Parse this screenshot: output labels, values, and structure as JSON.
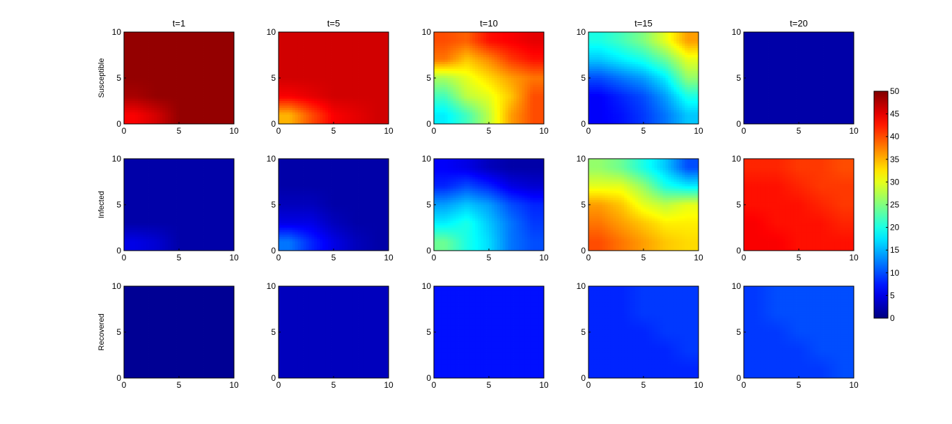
{
  "chart_data": {
    "type": "heatmap",
    "colormap": "jet",
    "grid": false,
    "column_titles": [
      "t=1",
      "t=5",
      "t=10",
      "t=15",
      "t=20"
    ],
    "row_labels": [
      "Susceptible",
      "Infected",
      "Recovered"
    ],
    "xlim": [
      0,
      10
    ],
    "ylim": [
      0,
      10
    ],
    "x_ticks": [
      "0",
      "5",
      "10"
    ],
    "y_ticks": [
      "0",
      "5",
      "10"
    ],
    "grid_coords": [
      0,
      2.5,
      5,
      7.5,
      10
    ],
    "colorbar": {
      "min": 0,
      "max": 50,
      "position": "right",
      "ticks": [
        "0",
        "5",
        "10",
        "15",
        "20",
        "25",
        "30",
        "35",
        "40",
        "45",
        "50"
      ]
    },
    "panels": [
      [
        {
          "values": [
            [
              49,
              49,
              49,
              49,
              49
            ],
            [
              49,
              49,
              49,
              49,
              49
            ],
            [
              49,
              49,
              49,
              49,
              49
            ],
            [
              48,
              49,
              49,
              49,
              49
            ],
            [
              44,
              46,
              49,
              49,
              49
            ]
          ]
        },
        {
          "values": [
            [
              46,
              46,
              46,
              46,
              46
            ],
            [
              46,
              46,
              46,
              46,
              46
            ],
            [
              46,
              46,
              46,
              46,
              46
            ],
            [
              44,
              45,
              46,
              46,
              46
            ],
            [
              35,
              40,
              44,
              45,
              46
            ]
          ]
        },
        {
          "values": [
            [
              40,
              39,
              43,
              44,
              45
            ],
            [
              38,
              34,
              37,
              41,
              43
            ],
            [
              27,
              30,
              33,
              36,
              38
            ],
            [
              22,
              28,
              30,
              34,
              40
            ],
            [
              18,
              22,
              28,
              36,
              40
            ]
          ]
        },
        {
          "values": [
            [
              20,
              22,
              25,
              30,
              36
            ],
            [
              16,
              18,
              20,
              24,
              30
            ],
            [
              10,
              12,
              14,
              18,
              26
            ],
            [
              6,
              8,
              10,
              14,
              20
            ],
            [
              6,
              7,
              9,
              12,
              16
            ]
          ]
        },
        {
          "values": [
            [
              2,
              2,
              2,
              2,
              2
            ],
            [
              2,
              2,
              2,
              2,
              2
            ],
            [
              2,
              2,
              2,
              2,
              2
            ],
            [
              2,
              2,
              2,
              2,
              2
            ],
            [
              2,
              2,
              2,
              2,
              2
            ]
          ]
        }
      ],
      [
        {
          "values": [
            [
              2,
              2,
              2,
              2,
              2
            ],
            [
              2,
              2,
              2,
              2,
              2
            ],
            [
              2,
              2,
              2,
              2,
              2
            ],
            [
              2,
              2,
              2,
              2,
              2
            ],
            [
              5,
              4,
              2,
              2,
              2
            ]
          ]
        },
        {
          "values": [
            [
              2,
              2,
              2,
              2,
              2
            ],
            [
              2,
              2,
              2,
              2,
              2
            ],
            [
              3,
              3,
              2,
              2,
              2
            ],
            [
              5,
              5,
              3,
              2,
              2
            ],
            [
              12,
              8,
              5,
              3,
              2
            ]
          ]
        },
        {
          "values": [
            [
              6,
              5,
              3,
              2,
              2
            ],
            [
              8,
              10,
              8,
              5,
              4
            ],
            [
              14,
              16,
              14,
              10,
              8
            ],
            [
              18,
              20,
              16,
              12,
              9
            ],
            [
              24,
              20,
              17,
              12,
              10
            ]
          ]
        },
        {
          "values": [
            [
              26,
              24,
              20,
              16,
              10
            ],
            [
              30,
              30,
              26,
              20,
              18
            ],
            [
              36,
              34,
              30,
              28,
              30
            ],
            [
              38,
              36,
              34,
              32,
              32
            ],
            [
              40,
              38,
              36,
              34,
              33
            ]
          ]
        },
        {
          "values": [
            [
              42,
              42,
              41,
              41,
              40
            ],
            [
              43,
              43,
              42,
              41,
              41
            ],
            [
              43,
              43,
              43,
              42,
              41
            ],
            [
              44,
              43,
              43,
              43,
              42
            ],
            [
              44,
              44,
              43,
              43,
              43
            ]
          ]
        }
      ],
      [
        {
          "values": [
            [
              1,
              1,
              1,
              1,
              1
            ],
            [
              1,
              1,
              1,
              1,
              1
            ],
            [
              1,
              1,
              1,
              1,
              1
            ],
            [
              1,
              1,
              1,
              1,
              1
            ],
            [
              1,
              1,
              1,
              1,
              1
            ]
          ]
        },
        {
          "values": [
            [
              3,
              3,
              3,
              3,
              3
            ],
            [
              3,
              3,
              3,
              3,
              3
            ],
            [
              3,
              3,
              3,
              3,
              3
            ],
            [
              3,
              3,
              3,
              3,
              3
            ],
            [
              3,
              3,
              3,
              3,
              3
            ]
          ]
        },
        {
          "values": [
            [
              7,
              7,
              7,
              7,
              7
            ],
            [
              7,
              7,
              7,
              7,
              7
            ],
            [
              7,
              7,
              7,
              7,
              7
            ],
            [
              7,
              7,
              7,
              7,
              7
            ],
            [
              7,
              7,
              7,
              7,
              7
            ]
          ]
        },
        {
          "values": [
            [
              8,
              8,
              9,
              9,
              9
            ],
            [
              8,
              8,
              9,
              9,
              9
            ],
            [
              8,
              8,
              8,
              9,
              9
            ],
            [
              8,
              8,
              8,
              8,
              9
            ],
            [
              8,
              8,
              8,
              8,
              8
            ]
          ]
        },
        {
          "values": [
            [
              9,
              10,
              10,
              10,
              10
            ],
            [
              9,
              10,
              10,
              10,
              10
            ],
            [
              9,
              9,
              10,
              10,
              10
            ],
            [
              9,
              9,
              9,
              10,
              10
            ],
            [
              9,
              9,
              9,
              9,
              10
            ]
          ]
        }
      ]
    ]
  }
}
